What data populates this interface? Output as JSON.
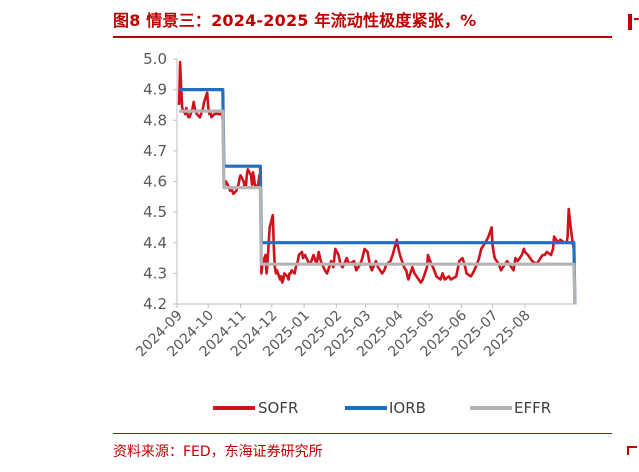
{
  "header": {
    "title": "图8  情景三：2024-2025 年流动性极度紧张，%"
  },
  "footer": {
    "source": "资料来源：FED，东海证券研究所"
  },
  "colors": {
    "accent": "#c00000",
    "sofr": "#d0121b",
    "iorb": "#1f6fc0",
    "effr": "#b4b4b4",
    "axis": "#bfbfbf"
  },
  "chart_data": {
    "type": "line",
    "title": "",
    "xlabel": "",
    "ylabel": "",
    "ylim": [
      4.2,
      5.0
    ],
    "yticks": [
      "5.0",
      "4.9",
      "4.8",
      "4.7",
      "4.6",
      "4.5",
      "4.4",
      "4.3",
      "4.2"
    ],
    "x_tick_labels": [
      "2024-09",
      "2024-10",
      "2024-11",
      "2024-12",
      "2025-01",
      "2025-02",
      "2025-03",
      "2025-04",
      "2025-05",
      "2025-06",
      "2025-07",
      "2025-08"
    ],
    "legend_position": "bottom",
    "grid": false,
    "series": [
      {
        "name": "SOFR",
        "color": "#d0121b",
        "points": [
          [
            "2024-09-03",
            4.85
          ],
          [
            "2024-09-04",
            4.99
          ],
          [
            "2024-09-05",
            4.9
          ],
          [
            "2024-09-06",
            4.84
          ],
          [
            "2024-09-09",
            4.82
          ],
          [
            "2024-09-10",
            4.84
          ],
          [
            "2024-09-11",
            4.82
          ],
          [
            "2024-09-12",
            4.81
          ],
          [
            "2024-09-13",
            4.81
          ],
          [
            "2024-09-16",
            4.84
          ],
          [
            "2024-09-17",
            4.86
          ],
          [
            "2024-09-18",
            4.84
          ],
          [
            "2024-09-19",
            4.83
          ],
          [
            "2024-09-20",
            4.82
          ],
          [
            "2024-09-23",
            4.81
          ],
          [
            "2024-09-24",
            4.82
          ],
          [
            "2024-09-25",
            4.83
          ],
          [
            "2024-09-26",
            4.84
          ],
          [
            "2024-09-27",
            4.86
          ],
          [
            "2024-09-30",
            4.89
          ],
          [
            "2024-10-01",
            4.84
          ],
          [
            "2024-10-02",
            4.82
          ],
          [
            "2024-10-03",
            4.83
          ],
          [
            "2024-10-04",
            4.81
          ],
          [
            "2024-10-07",
            4.82
          ],
          [
            "2024-10-08",
            4.82
          ],
          [
            "2024-10-09",
            4.83
          ],
          [
            "2024-10-10",
            4.82
          ],
          [
            "2024-10-11",
            4.82
          ],
          [
            "2024-10-14",
            4.82
          ],
          [
            "2024-10-15",
            4.8
          ],
          [
            "2024-10-16",
            4.6
          ],
          [
            "2024-10-17",
            4.59
          ],
          [
            "2024-10-18",
            4.6
          ],
          [
            "2024-10-21",
            4.58
          ],
          [
            "2024-10-22",
            4.57
          ],
          [
            "2024-10-23",
            4.58
          ],
          [
            "2024-10-24",
            4.57
          ],
          [
            "2024-10-25",
            4.56
          ],
          [
            "2024-10-28",
            4.57
          ],
          [
            "2024-10-29",
            4.58
          ],
          [
            "2024-10-30",
            4.59
          ],
          [
            "2024-10-31",
            4.61
          ],
          [
            "2024-11-01",
            4.62
          ],
          [
            "2024-11-04",
            4.6
          ],
          [
            "2024-11-05",
            4.58
          ],
          [
            "2024-11-06",
            4.58
          ],
          [
            "2024-11-07",
            4.62
          ],
          [
            "2024-11-08",
            4.64
          ],
          [
            "2024-11-11",
            4.62
          ],
          [
            "2024-11-12",
            4.59
          ],
          [
            "2024-11-13",
            4.63
          ],
          [
            "2024-11-14",
            4.61
          ],
          [
            "2024-11-15",
            4.58
          ],
          [
            "2024-11-18",
            4.59
          ],
          [
            "2024-11-19",
            4.62
          ],
          [
            "2024-11-20",
            4.59
          ],
          [
            "2024-11-21",
            4.3
          ],
          [
            "2024-11-22",
            4.33
          ],
          [
            "2024-11-25",
            4.36
          ],
          [
            "2024-11-26",
            4.3
          ],
          [
            "2024-11-27",
            4.34
          ],
          [
            "2024-11-29",
            4.45
          ],
          [
            "2024-12-02",
            4.49
          ],
          [
            "2024-12-03",
            4.38
          ],
          [
            "2024-12-04",
            4.32
          ],
          [
            "2024-12-05",
            4.3
          ],
          [
            "2024-12-06",
            4.31
          ],
          [
            "2024-12-09",
            4.28
          ],
          [
            "2024-12-10",
            4.29
          ],
          [
            "2024-12-11",
            4.27
          ],
          [
            "2024-12-12",
            4.28
          ],
          [
            "2024-12-13",
            4.3
          ],
          [
            "2024-12-16",
            4.29
          ],
          [
            "2024-12-17",
            4.28
          ],
          [
            "2024-12-18",
            4.3
          ],
          [
            "2024-12-19",
            4.3
          ],
          [
            "2024-12-20",
            4.31
          ],
          [
            "2024-12-23",
            4.3
          ],
          [
            "2024-12-24",
            4.32
          ],
          [
            "2024-12-26",
            4.34
          ],
          [
            "2024-12-27",
            4.36
          ],
          [
            "2024-12-30",
            4.37
          ],
          [
            "2024-12-31",
            4.35
          ],
          [
            "2025-01-02",
            4.36
          ],
          [
            "2025-01-06",
            4.33
          ],
          [
            "2025-01-08",
            4.34
          ],
          [
            "2025-01-10",
            4.36
          ],
          [
            "2025-01-13",
            4.33
          ],
          [
            "2025-01-15",
            4.37
          ],
          [
            "2025-01-17",
            4.34
          ],
          [
            "2025-01-21",
            4.31
          ],
          [
            "2025-01-23",
            4.3
          ],
          [
            "2025-01-27",
            4.34
          ],
          [
            "2025-01-29",
            4.32
          ],
          [
            "2025-01-31",
            4.38
          ],
          [
            "2025-02-03",
            4.36
          ],
          [
            "2025-02-05",
            4.33
          ],
          [
            "2025-02-07",
            4.32
          ],
          [
            "2025-02-11",
            4.35
          ],
          [
            "2025-02-13",
            4.33
          ],
          [
            "2025-02-18",
            4.34
          ],
          [
            "2025-02-20",
            4.31
          ],
          [
            "2025-02-24",
            4.33
          ],
          [
            "2025-02-26",
            4.35
          ],
          [
            "2025-02-28",
            4.38
          ],
          [
            "2025-03-03",
            4.37
          ],
          [
            "2025-03-05",
            4.33
          ],
          [
            "2025-03-07",
            4.31
          ],
          [
            "2025-03-11",
            4.34
          ],
          [
            "2025-03-13",
            4.32
          ],
          [
            "2025-03-17",
            4.3
          ],
          [
            "2025-03-19",
            4.31
          ],
          [
            "2025-03-21",
            4.33
          ],
          [
            "2025-03-25",
            4.34
          ],
          [
            "2025-03-27",
            4.36
          ],
          [
            "2025-03-31",
            4.41
          ],
          [
            "2025-04-01",
            4.39
          ],
          [
            "2025-04-03",
            4.36
          ],
          [
            "2025-04-07",
            4.32
          ],
          [
            "2025-04-09",
            4.31
          ],
          [
            "2025-04-11",
            4.28
          ],
          [
            "2025-04-15",
            4.32
          ],
          [
            "2025-04-17",
            4.3
          ],
          [
            "2025-04-21",
            4.28
          ],
          [
            "2025-04-23",
            4.27
          ],
          [
            "2025-04-25",
            4.28
          ],
          [
            "2025-04-29",
            4.32
          ],
          [
            "2025-04-30",
            4.36
          ],
          [
            "2025-05-02",
            4.34
          ],
          [
            "2025-05-06",
            4.31
          ],
          [
            "2025-05-08",
            4.29
          ],
          [
            "2025-05-12",
            4.28
          ],
          [
            "2025-05-14",
            4.3
          ],
          [
            "2025-05-16",
            4.28
          ],
          [
            "2025-05-20",
            4.29
          ],
          [
            "2025-05-22",
            4.28
          ],
          [
            "2025-05-27",
            4.29
          ],
          [
            "2025-05-30",
            4.34
          ],
          [
            "2025-06-02",
            4.35
          ],
          [
            "2025-06-04",
            4.33
          ],
          [
            "2025-06-06",
            4.3
          ],
          [
            "2025-06-10",
            4.29
          ],
          [
            "2025-06-12",
            4.3
          ],
          [
            "2025-06-16",
            4.33
          ],
          [
            "2025-06-18",
            4.35
          ],
          [
            "2025-06-20",
            4.38
          ],
          [
            "2025-06-24",
            4.4
          ],
          [
            "2025-06-27",
            4.42
          ],
          [
            "2025-06-30",
            4.45
          ],
          [
            "2025-07-01",
            4.39
          ],
          [
            "2025-07-03",
            4.35
          ],
          [
            "2025-07-07",
            4.33
          ],
          [
            "2025-07-09",
            4.31
          ],
          [
            "2025-07-11",
            4.32
          ],
          [
            "2025-07-15",
            4.34
          ],
          [
            "2025-07-17",
            4.33
          ],
          [
            "2025-07-21",
            4.31
          ],
          [
            "2025-07-23",
            4.35
          ],
          [
            "2025-07-25",
            4.34
          ],
          [
            "2025-07-29",
            4.36
          ],
          [
            "2025-07-31",
            4.38
          ],
          [
            "2025-08-01",
            4.37
          ],
          [
            "2025-08-04",
            4.36
          ],
          [
            "2025-08-06",
            4.35
          ],
          [
            "2025-08-08",
            4.34
          ],
          [
            "2025-08-12",
            4.33
          ],
          [
            "2025-08-14",
            4.34
          ],
          [
            "2025-08-18",
            4.36
          ],
          [
            "2025-08-20",
            4.36
          ],
          [
            "2025-08-22",
            4.37
          ],
          [
            "2025-08-26",
            4.36
          ],
          [
            "2025-08-28",
            4.38
          ],
          [
            "2025-08-29",
            4.42
          ],
          [
            "2025-09-02",
            4.4
          ],
          [
            "2025-09-04",
            4.41
          ],
          [
            "2025-09-08",
            4.4
          ],
          [
            "2025-09-10",
            4.4
          ],
          [
            "2025-09-11",
            4.42
          ],
          [
            "2025-09-12",
            4.51
          ],
          [
            "2025-09-15",
            4.42
          ],
          [
            "2025-09-16",
            4.4
          ],
          [
            "2025-09-17",
            4.38
          ]
        ]
      },
      {
        "name": "IORB",
        "color": "#1f6fc0",
        "points": [
          [
            "2024-09-03",
            4.9
          ],
          [
            "2024-09-18",
            4.9
          ],
          [
            "2024-10-15",
            4.9
          ],
          [
            "2024-10-16",
            4.65
          ],
          [
            "2024-11-20",
            4.65
          ],
          [
            "2024-11-21",
            4.4
          ],
          [
            "2025-09-17",
            4.4
          ],
          [
            "2025-09-18",
            4.15
          ]
        ]
      },
      {
        "name": "EFFR",
        "color": "#b4b4b4",
        "points": [
          [
            "2024-09-03",
            4.83
          ],
          [
            "2024-09-18",
            4.83
          ],
          [
            "2024-10-15",
            4.83
          ],
          [
            "2024-10-16",
            4.58
          ],
          [
            "2024-11-20",
            4.58
          ],
          [
            "2024-11-21",
            4.33
          ],
          [
            "2025-09-17",
            4.33
          ],
          [
            "2025-09-18",
            4.08
          ]
        ]
      }
    ]
  }
}
